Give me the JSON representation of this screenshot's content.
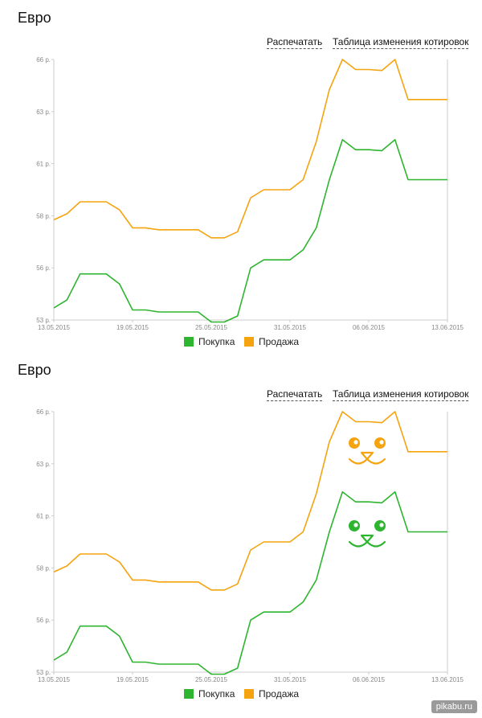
{
  "panels": [
    {
      "title": "Евро",
      "print_label": "Распечатать",
      "table_label": "Таблица изменения котировок"
    },
    {
      "title": "Евро",
      "print_label": "Распечатать",
      "table_label": "Таблица изменения котировок"
    }
  ],
  "chart_data": [
    {
      "type": "line",
      "x_ticks": [
        "13.05.2015",
        "19.05.2015",
        "25.05.2015",
        "31.05.2015",
        "06.06.2015",
        "13.06.2015"
      ],
      "y_ticks": [
        "53 р.",
        "56 р.",
        "58 р.",
        "61 р.",
        "63 р.",
        "66 р."
      ],
      "ylim": [
        53,
        66
      ],
      "grid": false,
      "legend_position": "bottom",
      "series": [
        {
          "name": "Покупка",
          "color": "#2db52f",
          "values": [
            53.6,
            54.0,
            55.3,
            55.3,
            55.3,
            54.8,
            53.5,
            53.5,
            53.4,
            53.4,
            53.4,
            53.4,
            52.9,
            52.9,
            53.2,
            55.6,
            56.0,
            56.0,
            56.0,
            56.5,
            57.6,
            60.0,
            62.0,
            61.5,
            61.5,
            61.45,
            62.0,
            60.0,
            60.0,
            60.0,
            60.0
          ]
        },
        {
          "name": "Продажа",
          "color": "#f5a30f",
          "values": [
            58.0,
            58.3,
            58.9,
            58.9,
            58.9,
            58.5,
            57.6,
            57.6,
            57.5,
            57.5,
            57.5,
            57.5,
            57.1,
            57.1,
            57.4,
            59.1,
            59.5,
            59.5,
            59.5,
            60.0,
            61.9,
            64.5,
            66.0,
            65.5,
            65.5,
            65.45,
            66.0,
            64.0,
            64.0,
            64.0,
            64.0
          ]
        }
      ]
    },
    {
      "type": "line",
      "x_ticks": [
        "13.05.2015",
        "19.05.2015",
        "25.05.2015",
        "31.05.2015",
        "06.06.2015",
        "13.06.2015"
      ],
      "y_ticks": [
        "53 р.",
        "56 р.",
        "58 р.",
        "61 р.",
        "63 р.",
        "66 р."
      ],
      "ylim": [
        53,
        66
      ],
      "grid": false,
      "legend_position": "bottom",
      "annotations": [
        "cat-face-orange",
        "cat-face-green"
      ],
      "series": [
        {
          "name": "Покупка",
          "color": "#2db52f",
          "values": [
            53.6,
            54.0,
            55.3,
            55.3,
            55.3,
            54.8,
            53.5,
            53.5,
            53.4,
            53.4,
            53.4,
            53.4,
            52.9,
            52.9,
            53.2,
            55.6,
            56.0,
            56.0,
            56.0,
            56.5,
            57.6,
            60.0,
            62.0,
            61.5,
            61.5,
            61.45,
            62.0,
            60.0,
            60.0,
            60.0,
            60.0
          ]
        },
        {
          "name": "Продажа",
          "color": "#f5a30f",
          "values": [
            58.0,
            58.3,
            58.9,
            58.9,
            58.9,
            58.5,
            57.6,
            57.6,
            57.5,
            57.5,
            57.5,
            57.5,
            57.1,
            57.1,
            57.4,
            59.1,
            59.5,
            59.5,
            59.5,
            60.0,
            61.9,
            64.5,
            66.0,
            65.5,
            65.5,
            65.45,
            66.0,
            64.0,
            64.0,
            64.0,
            64.0
          ]
        }
      ]
    }
  ],
  "watermark": "pikabu.ru"
}
